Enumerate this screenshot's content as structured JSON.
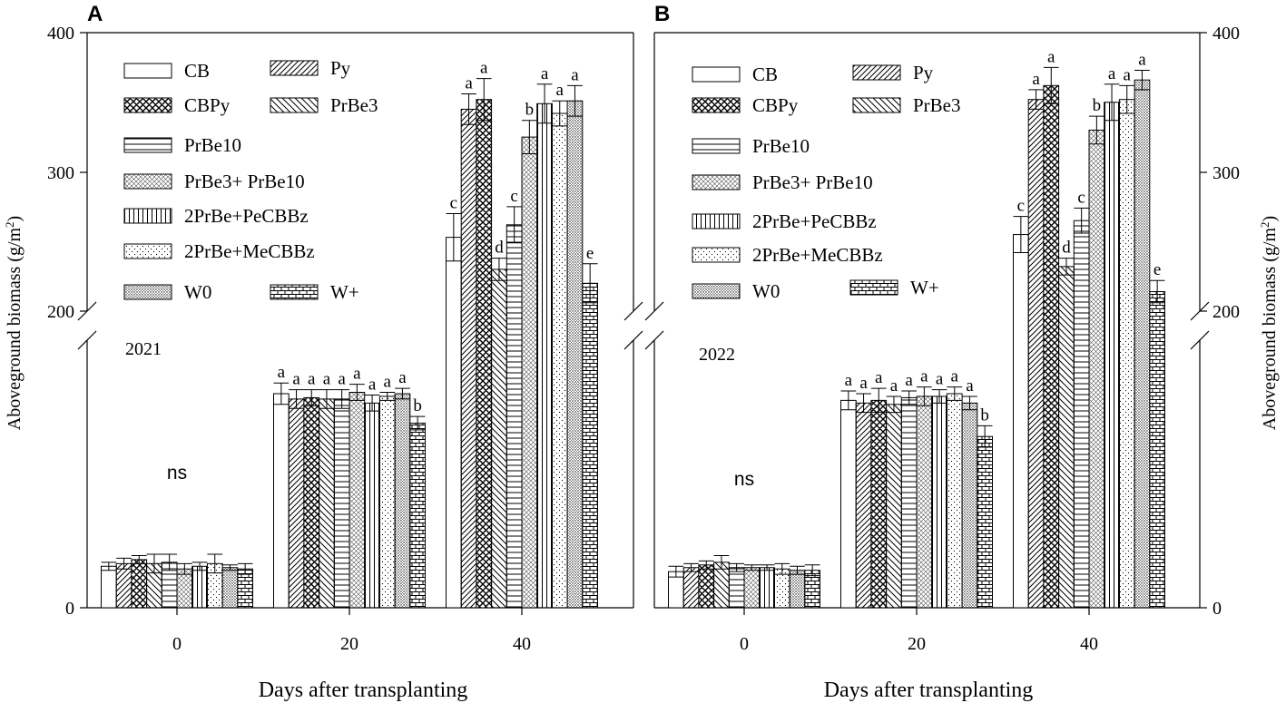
{
  "treatments": [
    "CB",
    "Py",
    "CBPy",
    "PrBe3",
    "PrBe10",
    "PrBe3+ PrBe10",
    "2PrBe+PeCBBz",
    "2PrBe+MeCBBz",
    "W0",
    "W+"
  ],
  "legend_label_B_pesticide": " 2PrBe+MeCBBz",
  "panel_A": {
    "panel_letter": "A",
    "year": "2021",
    "ns_label": "ns"
  },
  "panel_B": {
    "panel_letter": "B",
    "year": "2022",
    "ns_label": "ns"
  },
  "xlabel": "Days after transplanting",
  "ylabel_left": "Aboveground biomass (g/m",
  "ylabel_right": "Aboveground biomass (g/m",
  "ylabel_sup": "2",
  "ylabel_close": ")",
  "y_ticks": [
    "0",
    "200",
    "300",
    "400"
  ],
  "x_ticks": [
    "0",
    "20",
    "40"
  ],
  "chart_data": [
    {
      "type": "bar",
      "title": "A (2021)",
      "xlabel": "Days after transplanting",
      "ylabel": "Aboveground biomass (g/m2)",
      "categories": [
        "0",
        "20",
        "40"
      ],
      "y_axis": "broken: 0 to 200 compressed (lower segment), 200 to 400 upper segment",
      "ylim": [
        0,
        400
      ],
      "series": [
        {
          "name": "CB",
          "values": [
            31,
            160,
            253
          ],
          "errors": [
            3,
            8,
            17
          ],
          "letters": [
            "",
            "a",
            "c"
          ]
        },
        {
          "name": "Py",
          "values": [
            33,
            156,
            345
          ],
          "errors": [
            4,
            7,
            11
          ],
          "letters": [
            "",
            "a",
            "a"
          ]
        },
        {
          "name": "CBPy",
          "values": [
            36,
            157,
            352
          ],
          "errors": [
            3,
            6,
            15
          ],
          "letters": [
            "",
            "a",
            "a"
          ]
        },
        {
          "name": "PrBe3",
          "values": [
            33,
            156,
            230
          ],
          "errors": [
            7,
            7,
            8
          ],
          "letters": [
            "",
            "a",
            "d"
          ]
        },
        {
          "name": "PrBe10",
          "values": [
            34,
            156,
            262
          ],
          "errors": [
            6,
            7,
            13
          ],
          "letters": [
            "",
            "a",
            "c"
          ]
        },
        {
          "name": "PrBe3+ PrBe10",
          "values": [
            29,
            161,
            325
          ],
          "errors": [
            4,
            6,
            12
          ],
          "letters": [
            "",
            "a",
            ""
          ]
        },
        {
          "name": "2PrBe+PeCBBz",
          "values": [
            31,
            153,
            349
          ],
          "errors": [
            3,
            6,
            14
          ],
          "letters": [
            "",
            "a",
            "a"
          ]
        },
        {
          "name": "2PrBe+MeCBBz",
          "values": [
            33,
            158,
            342
          ],
          "errors": [
            7,
            3,
            9
          ],
          "letters": [
            "",
            "a",
            "a"
          ]
        },
        {
          "name": "W0",
          "values": [
            30,
            160,
            351
          ],
          "errors": [
            2,
            4,
            11
          ],
          "letters": [
            "",
            "a",
            "a"
          ]
        },
        {
          "name": "W+",
          "values": [
            29,
            138,
            220
          ],
          "errors": [
            4,
            5,
            14
          ],
          "letters": [
            "",
            "b",
            "e"
          ]
        }
      ],
      "annotations": [
        "b above PrBe3+ PrBe10 at day 40",
        "ns at day 0"
      ]
    },
    {
      "type": "bar",
      "title": "B (2022)",
      "xlabel": "Days after transplanting",
      "ylabel": "Aboveground biomass (g/m2)",
      "categories": [
        "0",
        "20",
        "40"
      ],
      "y_axis": "broken: 0 to 200 compressed (lower segment), 200 to 400 upper segment",
      "ylim": [
        0,
        400
      ],
      "series": [
        {
          "name": "CB",
          "values": [
            27,
            155,
            255
          ],
          "errors": [
            4,
            7,
            13
          ],
          "letters": [
            "",
            "a",
            "c"
          ]
        },
        {
          "name": "Py",
          "values": [
            30,
            153,
            352
          ],
          "errors": [
            3,
            7,
            7
          ],
          "letters": [
            "",
            "a",
            "a"
          ]
        },
        {
          "name": "CBPy",
          "values": [
            32,
            155,
            362
          ],
          "errors": [
            3,
            9,
            13
          ],
          "letters": [
            "",
            "a",
            "a"
          ]
        },
        {
          "name": "PrBe3",
          "values": [
            34,
            152,
            232
          ],
          "errors": [
            5,
            6,
            6
          ],
          "letters": [
            "",
            "a",
            "d"
          ]
        },
        {
          "name": "PrBe10",
          "values": [
            30,
            157,
            265
          ],
          "errors": [
            3,
            5,
            9
          ],
          "letters": [
            "",
            "a",
            "c"
          ]
        },
        {
          "name": "PrBe3+ PrBe10",
          "values": [
            30,
            158,
            330
          ],
          "errors": [
            2,
            7,
            10
          ],
          "letters": [
            "",
            "a",
            ""
          ]
        },
        {
          "name": "2PrBe+PeCBBz",
          "values": [
            30,
            158,
            350
          ],
          "errors": [
            2,
            5,
            13
          ],
          "letters": [
            "",
            "a",
            "a"
          ]
        },
        {
          "name": "2PrBe+MeCBBz",
          "values": [
            29,
            160,
            352
          ],
          "errors": [
            4,
            5,
            10
          ],
          "letters": [
            "",
            "a",
            "a"
          ]
        },
        {
          "name": "W0",
          "values": [
            28,
            153,
            366
          ],
          "errors": [
            3,
            5,
            7
          ],
          "letters": [
            "",
            "a",
            "a"
          ]
        },
        {
          "name": "W+",
          "values": [
            28,
            128,
            214
          ],
          "errors": [
            4,
            8,
            8
          ],
          "letters": [
            "",
            "b",
            "e"
          ]
        }
      ],
      "annotations": [
        "b above PrBe3+ PrBe10 at day 40",
        "ns at day 0"
      ]
    }
  ]
}
